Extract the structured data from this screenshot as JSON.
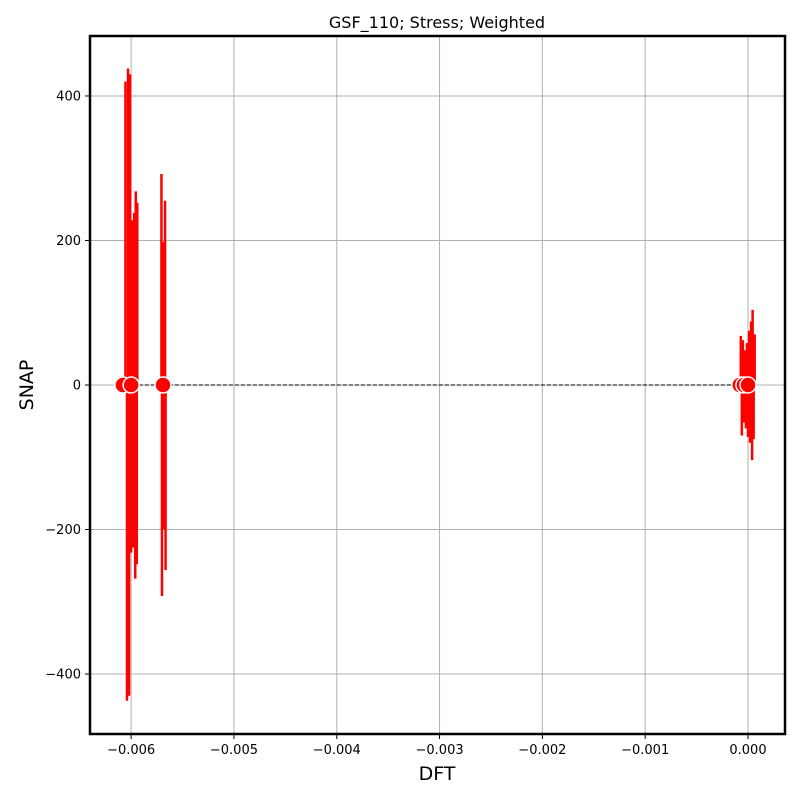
{
  "chart_data": {
    "type": "scatter",
    "title": "GSF_110; Stress; Weighted",
    "xlabel": "DFT",
    "ylabel": "SNAP",
    "xlim": [
      -0.0064,
      0.00036
    ],
    "ylim": [
      -483,
      483
    ],
    "xticks": [
      -0.006,
      -0.005,
      -0.004,
      -0.003,
      -0.002,
      -0.001,
      0.0
    ],
    "xtick_labels": [
      "−0.006",
      "−0.005",
      "−0.004",
      "−0.003",
      "−0.002",
      "−0.001",
      "0.000"
    ],
    "yticks": [
      -400,
      -200,
      0,
      200,
      400
    ],
    "ytick_labels": [
      "−400",
      "−200",
      "0",
      "200",
      "400"
    ],
    "grid": true,
    "reference_line": {
      "style": "dashed",
      "color": "#000000",
      "x": [
        -0.0061,
        5e-05
      ],
      "y": [
        0,
        0
      ]
    },
    "points": [
      {
        "x": -0.00608,
        "y": 0
      },
      {
        "x": -0.006,
        "y": 0
      },
      {
        "x": -0.00569,
        "y": 0
      },
      {
        "x": -8e-05,
        "y": 0
      },
      {
        "x": -4e-05,
        "y": 0
      },
      {
        "x": 0.0,
        "y": 0
      }
    ],
    "spikes": [
      {
        "x": -0.006055,
        "y": 420
      },
      {
        "x": -0.00604,
        "y": -437
      },
      {
        "x": -0.00603,
        "y": 438
      },
      {
        "x": -0.00602,
        "y": -430
      },
      {
        "x": -0.00601,
        "y": 430
      },
      {
        "x": -0.006,
        "y": -232
      },
      {
        "x": -0.00599,
        "y": 228
      },
      {
        "x": -0.00598,
        "y": -225
      },
      {
        "x": -0.00597,
        "y": 238
      },
      {
        "x": -0.00596,
        "y": -268
      },
      {
        "x": -0.005955,
        "y": 268
      },
      {
        "x": -0.005945,
        "y": -248
      },
      {
        "x": -0.00594,
        "y": 252
      },
      {
        "x": -0.005705,
        "y": 292
      },
      {
        "x": -0.0057,
        "y": -292
      },
      {
        "x": -0.00569,
        "y": 198
      },
      {
        "x": -0.00568,
        "y": -200
      },
      {
        "x": -0.00567,
        "y": 255
      },
      {
        "x": -0.005665,
        "y": -256
      },
      {
        "x": -7e-05,
        "y": 68
      },
      {
        "x": -6e-05,
        "y": -70
      },
      {
        "x": -5e-05,
        "y": 62
      },
      {
        "x": -4e-05,
        "y": -52
      },
      {
        "x": -3e-05,
        "y": 48
      },
      {
        "x": -2e-05,
        "y": -60
      },
      {
        "x": -1e-05,
        "y": 58
      },
      {
        "x": 0.0,
        "y": -72
      },
      {
        "x": 1e-05,
        "y": 75
      },
      {
        "x": 2e-05,
        "y": -80
      },
      {
        "x": 3e-05,
        "y": 88
      },
      {
        "x": 4e-05,
        "y": -104
      },
      {
        "x": 4.5e-05,
        "y": 104
      },
      {
        "x": 5.5e-05,
        "y": -75
      },
      {
        "x": 6.5e-05,
        "y": 70
      }
    ],
    "colors": {
      "points": "#ff0000",
      "spikes": "#ff0000",
      "grid": "#b0b0b0",
      "frame": "#000000"
    }
  }
}
